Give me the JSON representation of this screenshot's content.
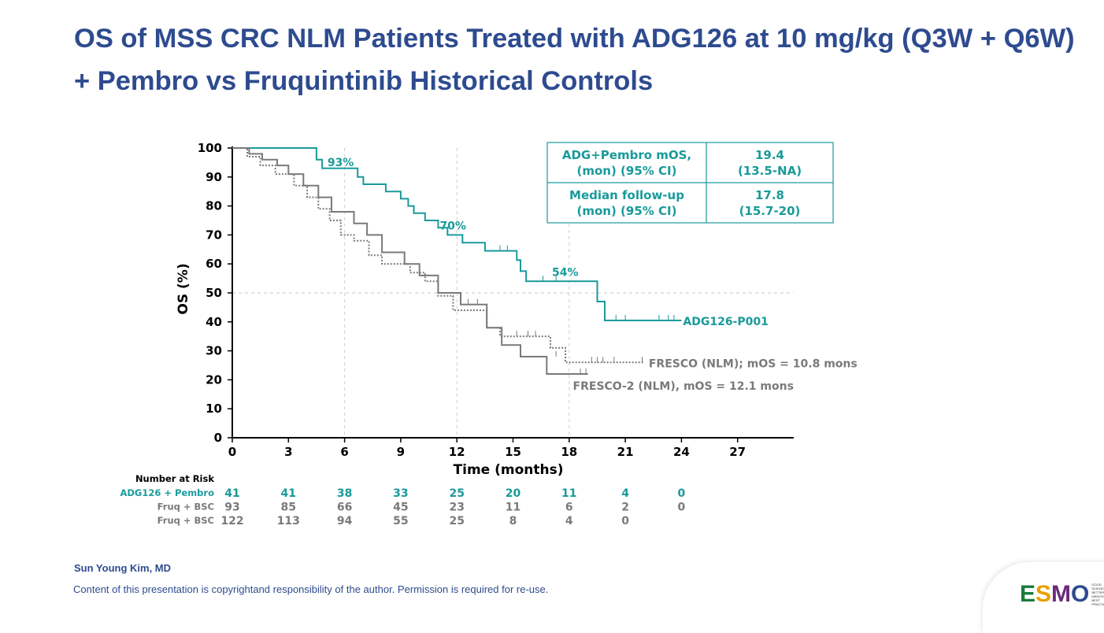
{
  "title": {
    "line1": "OS of MSS CRC NLM Patients Treated with ADG126 at 10 mg/kg (Q3W + Q6W)",
    "line2": "+ Pembro vs Fruquintinib Historical Controls"
  },
  "footer": {
    "author": "Sun Young Kim, MD",
    "copyright": "Content of this presentation is copyrightand responsibility of the author. Permission is required for re-use."
  },
  "logo": {
    "letters": [
      "E",
      "S",
      "M",
      "O"
    ],
    "tagline": [
      "GOOD SCIENCE",
      "BETTER MEDICINE",
      "BEST PRACTICE"
    ]
  },
  "colors": {
    "teal": "#1a9a9a",
    "gray": "#7a7a7a",
    "title": "#2e4b8f"
  },
  "info_table": [
    {
      "label1": "ADG+Pembro mOS,",
      "label2": "(mon) (95% CI)",
      "value1": "19.4",
      "value2": "(13.5-NA)"
    },
    {
      "label1": "Median follow-up",
      "label2": "(mon) (95% CI)",
      "value1": "17.8",
      "value2": "(15.7-20)"
    }
  ],
  "chart_data": {
    "type": "line",
    "subtype": "kaplan-meier",
    "xlabel": "Time (months)",
    "ylabel": "OS (%)",
    "xlim": [
      0,
      30
    ],
    "ylim": [
      0,
      100
    ],
    "xticks": [
      0,
      3,
      6,
      9,
      12,
      15,
      18,
      21,
      24,
      27
    ],
    "yticks": [
      0,
      10,
      20,
      30,
      40,
      50,
      60,
      70,
      80,
      90,
      100
    ],
    "reference_line_y": 50,
    "reference_lines_x": [
      6,
      12,
      18
    ],
    "series": [
      {
        "name": "ADG126-P001",
        "label": "ADG126-P001",
        "style": "solid",
        "color": "#1a9a9a",
        "steps": [
          [
            0,
            100
          ],
          [
            4.5,
            100
          ],
          [
            4.5,
            96
          ],
          [
            4.8,
            96
          ],
          [
            4.8,
            93
          ],
          [
            6.7,
            93
          ],
          [
            6.7,
            90
          ],
          [
            7.0,
            90
          ],
          [
            7.0,
            87.5
          ],
          [
            8.2,
            87.5
          ],
          [
            8.2,
            85
          ],
          [
            9.0,
            85
          ],
          [
            9.0,
            82.5
          ],
          [
            9.4,
            82.5
          ],
          [
            9.4,
            80
          ],
          [
            9.7,
            80
          ],
          [
            9.7,
            77.5
          ],
          [
            10.3,
            77.5
          ],
          [
            10.3,
            75
          ],
          [
            11.0,
            75
          ],
          [
            11.0,
            72.5
          ],
          [
            11.5,
            72.5
          ],
          [
            11.5,
            70
          ],
          [
            12.3,
            70
          ],
          [
            12.3,
            67.3
          ],
          [
            13.5,
            67.3
          ],
          [
            13.5,
            64.5
          ],
          [
            15.2,
            64.5
          ],
          [
            15.2,
            61.3
          ],
          [
            15.4,
            61.3
          ],
          [
            15.4,
            57.5
          ],
          [
            15.7,
            57.5
          ],
          [
            15.7,
            54
          ],
          [
            19.5,
            54
          ],
          [
            19.5,
            47
          ],
          [
            19.9,
            47
          ],
          [
            19.9,
            40.5
          ],
          [
            24,
            40.5
          ]
        ],
        "censors": [
          [
            22.8,
            40.5
          ],
          [
            23.3,
            40.5
          ],
          [
            23.6,
            40.5
          ],
          [
            20.5,
            40.5
          ],
          [
            21.0,
            40.5
          ],
          [
            16.6,
            54
          ],
          [
            17.3,
            54
          ],
          [
            14.3,
            64.5
          ],
          [
            14.7,
            64.5
          ]
        ],
        "milestones": [
          {
            "x": 6,
            "y": 93,
            "label": "93%"
          },
          {
            "x": 12,
            "y": 70,
            "label": "70%"
          },
          {
            "x": 18,
            "y": 54,
            "label": "54%"
          }
        ]
      },
      {
        "name": "FRESCO (NLM)",
        "label": "FRESCO (NLM); mOS = 10.8 mons",
        "style": "dotted",
        "color": "#7a7a7a",
        "steps": [
          [
            0,
            100
          ],
          [
            0.8,
            100
          ],
          [
            0.8,
            97
          ],
          [
            1.5,
            97
          ],
          [
            1.5,
            94
          ],
          [
            2.3,
            94
          ],
          [
            2.3,
            91
          ],
          [
            3.3,
            91
          ],
          [
            3.3,
            87
          ],
          [
            4.0,
            87
          ],
          [
            4.0,
            83
          ],
          [
            4.6,
            83
          ],
          [
            4.6,
            79
          ],
          [
            5.2,
            79
          ],
          [
            5.2,
            75
          ],
          [
            5.8,
            75
          ],
          [
            5.8,
            70
          ],
          [
            6.5,
            70
          ],
          [
            6.5,
            68
          ],
          [
            7.3,
            68
          ],
          [
            7.3,
            63
          ],
          [
            8.0,
            63
          ],
          [
            8.0,
            60
          ],
          [
            9.5,
            60
          ],
          [
            9.5,
            57
          ],
          [
            10.3,
            57
          ],
          [
            10.3,
            54
          ],
          [
            11.0,
            54
          ],
          [
            11.0,
            49
          ],
          [
            11.8,
            49
          ],
          [
            11.8,
            44
          ],
          [
            13.6,
            44
          ],
          [
            13.6,
            38
          ],
          [
            14.3,
            38
          ],
          [
            14.3,
            35
          ],
          [
            17.0,
            35
          ],
          [
            17.0,
            31
          ],
          [
            17.8,
            31
          ],
          [
            17.8,
            26
          ],
          [
            22.0,
            26
          ]
        ],
        "censors": [
          [
            19.2,
            26
          ],
          [
            19.5,
            26
          ],
          [
            19.8,
            26
          ],
          [
            20.4,
            26
          ],
          [
            21.9,
            26
          ],
          [
            15.2,
            35
          ],
          [
            15.8,
            35
          ],
          [
            16.2,
            35
          ]
        ]
      },
      {
        "name": "FRESCO-2 (NLM)",
        "label": "FRESCO-2 (NLM), mOS = 12.1 mons",
        "style": "solid",
        "color": "#7a7a7a",
        "steps": [
          [
            0,
            100
          ],
          [
            0.9,
            100
          ],
          [
            0.9,
            98
          ],
          [
            1.6,
            98
          ],
          [
            1.6,
            96
          ],
          [
            2.4,
            96
          ],
          [
            2.4,
            94
          ],
          [
            3.0,
            94
          ],
          [
            3.0,
            91
          ],
          [
            3.8,
            91
          ],
          [
            3.8,
            87
          ],
          [
            4.6,
            87
          ],
          [
            4.6,
            83
          ],
          [
            5.3,
            83
          ],
          [
            5.3,
            78
          ],
          [
            6.5,
            78
          ],
          [
            6.5,
            74
          ],
          [
            7.2,
            74
          ],
          [
            7.2,
            70
          ],
          [
            8.0,
            70
          ],
          [
            8.0,
            64
          ],
          [
            9.2,
            64
          ],
          [
            9.2,
            60
          ],
          [
            10.0,
            60
          ],
          [
            10.0,
            56
          ],
          [
            11.0,
            56
          ],
          [
            11.0,
            50
          ],
          [
            12.2,
            50
          ],
          [
            12.2,
            46
          ],
          [
            13.6,
            46
          ],
          [
            13.6,
            38
          ],
          [
            14.4,
            38
          ],
          [
            14.4,
            32
          ],
          [
            15.4,
            32
          ],
          [
            15.4,
            28
          ],
          [
            16.8,
            28
          ],
          [
            16.8,
            22
          ],
          [
            19.0,
            22
          ]
        ],
        "censors": [
          [
            18.6,
            22
          ],
          [
            18.9,
            22
          ],
          [
            17.3,
            28
          ],
          [
            13.1,
            46
          ],
          [
            12.6,
            46
          ]
        ]
      }
    ],
    "risk_table": {
      "header": "Number at Risk",
      "rows": [
        {
          "label": "ADG126 + Pembro",
          "color": "#1a9a9a",
          "values": [
            "41",
            "41",
            "38",
            "33",
            "25",
            "20",
            "11",
            "4",
            "0"
          ]
        },
        {
          "label": "Fruq + BSC",
          "color": "#7a7a7a",
          "values": [
            "93",
            "85",
            "66",
            "45",
            "23",
            "11",
            "6",
            "2",
            "0"
          ]
        },
        {
          "label": "Fruq + BSC",
          "color": "#7a7a7a",
          "values": [
            "122",
            "113",
            "94",
            "55",
            "25",
            "8",
            "4",
            "0"
          ]
        }
      ]
    }
  }
}
